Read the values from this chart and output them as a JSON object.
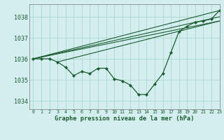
{
  "title": "Graphe pression niveau de la mer (hPa)",
  "bg_color": "#d4eef0",
  "grid_color": "#aad8cc",
  "line_color": "#1a5c30",
  "xlim": [
    -0.5,
    23
  ],
  "ylim": [
    1033.6,
    1038.6
  ],
  "yticks": [
    1034,
    1035,
    1036,
    1037,
    1038
  ],
  "xticks": [
    0,
    1,
    2,
    3,
    4,
    5,
    6,
    7,
    8,
    9,
    10,
    11,
    12,
    13,
    14,
    15,
    16,
    17,
    18,
    19,
    20,
    21,
    22,
    23
  ],
  "main_series": [
    1036.0,
    1036.0,
    1036.0,
    1035.85,
    1035.6,
    1035.2,
    1035.4,
    1035.3,
    1035.55,
    1035.55,
    1035.05,
    1034.95,
    1034.75,
    1034.3,
    1034.3,
    1034.8,
    1035.3,
    1036.3,
    1037.3,
    1037.55,
    1037.75,
    1037.8,
    1037.9,
    1038.3
  ],
  "fan_lines": [
    {
      "x0": 0,
      "y0": 1036.0,
      "x1": 23,
      "y1": 1037.8
    },
    {
      "x0": 0,
      "y0": 1036.0,
      "x1": 23,
      "y1": 1038.0
    },
    {
      "x0": 0,
      "y0": 1036.0,
      "x1": 23,
      "y1": 1038.3
    },
    {
      "x0": 3,
      "y0": 1035.85,
      "x1": 23,
      "y1": 1037.8
    }
  ]
}
